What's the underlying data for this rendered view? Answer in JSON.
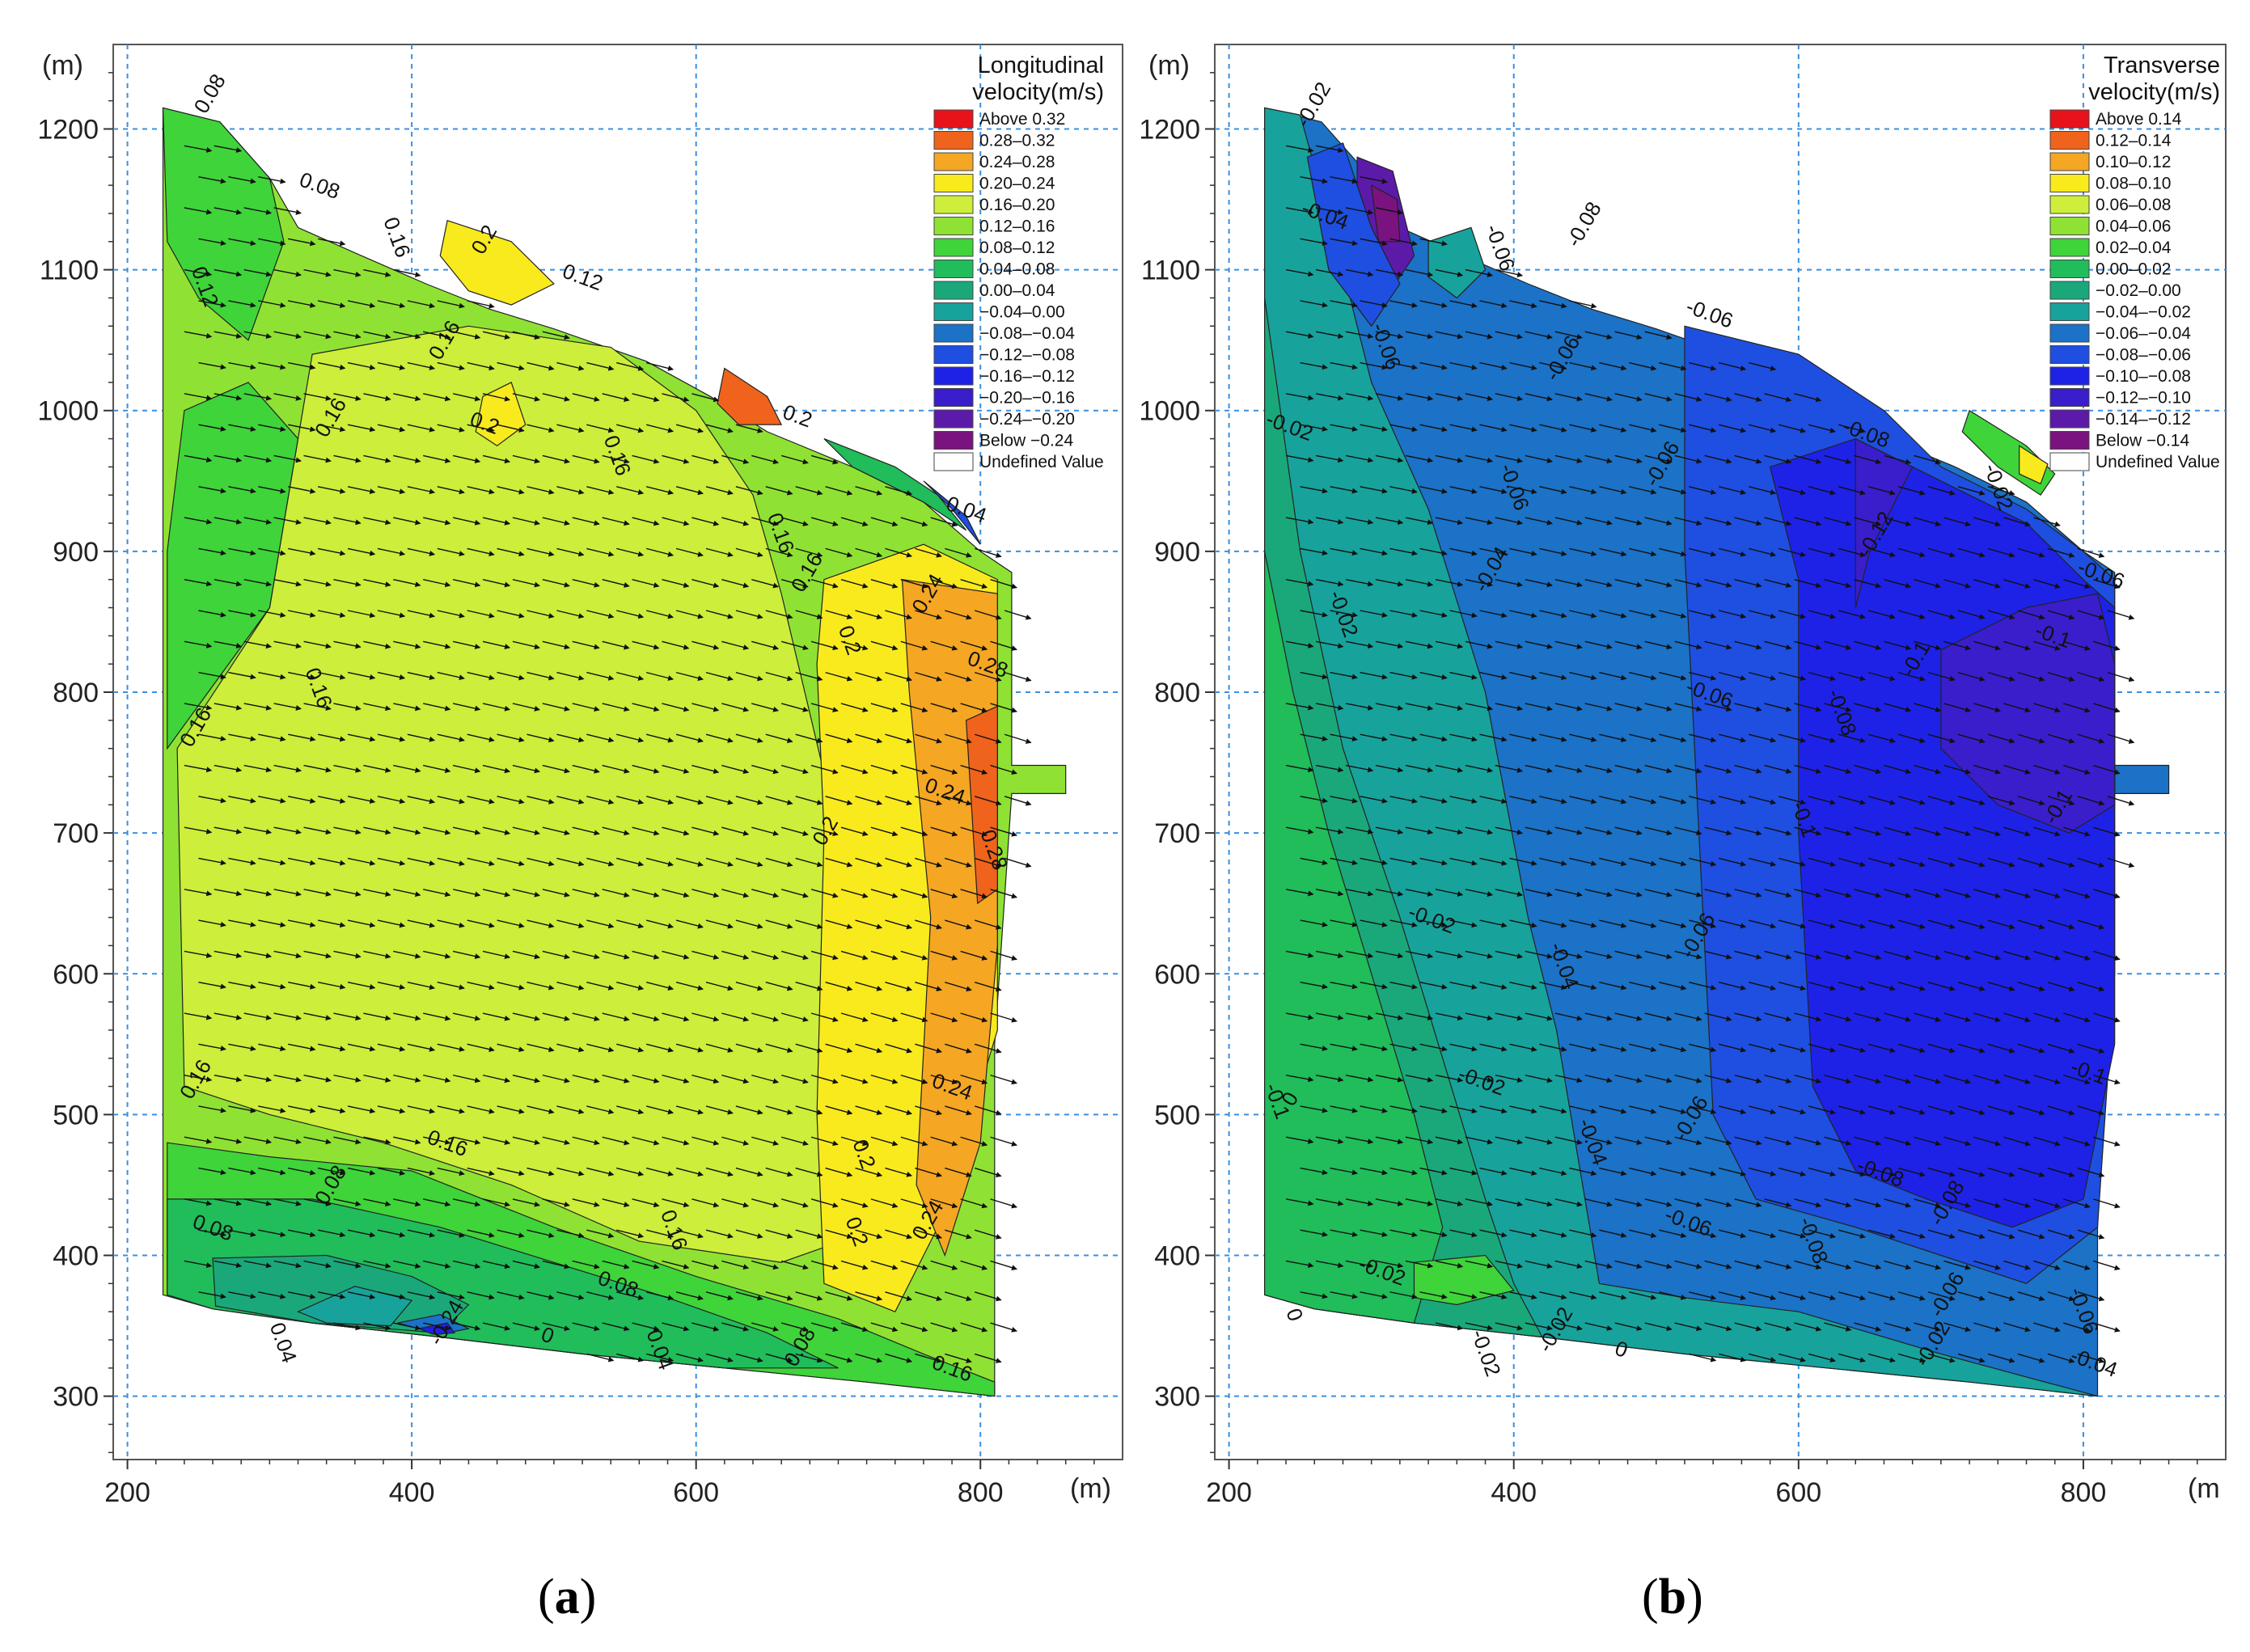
{
  "chart_data": [
    {
      "type": "heatmap",
      "panel_label": "a",
      "legend_title_lines": [
        "Longitudinal",
        "velocity(m/s)"
      ],
      "x_unit": "(m)",
      "y_unit": "(m)",
      "xlim": [
        190,
        900
      ],
      "ylim": [
        255,
        1260
      ],
      "x_ticks": [
        200,
        400,
        600,
        800
      ],
      "y_ticks": [
        300,
        400,
        500,
        600,
        700,
        800,
        900,
        1000,
        1100,
        1200
      ],
      "grid": true,
      "legend_position": "top-right",
      "legend": [
        {
          "label": "Above 0.32",
          "color": "#e8121a"
        },
        {
          "label": "0.28–0.32",
          "color": "#f0631c"
        },
        {
          "label": "0.24–0.28",
          "color": "#f5a623"
        },
        {
          "label": "0.20–0.24",
          "color": "#f9ea1e"
        },
        {
          "label": "0.16–0.20",
          "color": "#cdee3a"
        },
        {
          "label": "0.12–0.16",
          "color": "#8fe233"
        },
        {
          "label": "0.08–0.12",
          "color": "#3fd43a"
        },
        {
          "label": "0.04–0.08",
          "color": "#20bd5a"
        },
        {
          "label": "0.00–0.04",
          "color": "#1aa87a"
        },
        {
          "label": "−0.04–0.00",
          "color": "#17a39b"
        },
        {
          "label": "−0.08–−0.04",
          "color": "#1b72c7"
        },
        {
          "label": "−0.12–−0.08",
          "color": "#1e4fe0"
        },
        {
          "label": "−0.16–−0.12",
          "color": "#1e22e6"
        },
        {
          "label": "−0.20–−0.16",
          "color": "#3a1ecc"
        },
        {
          "label": "−0.24–−0.20",
          "color": "#5c1aa8"
        },
        {
          "label": "Below −0.24",
          "color": "#7a137f"
        },
        {
          "label": "Undefined Value",
          "color": "#ffffff"
        }
      ],
      "contour_labels": [
        {
          "x": 255,
          "y": 1210,
          "text": "0.08"
        },
        {
          "x": 320,
          "y": 1160,
          "text": "0.08"
        },
        {
          "x": 380,
          "y": 1135,
          "text": "0.16"
        },
        {
          "x": 450,
          "y": 1110,
          "text": "0.2"
        },
        {
          "x": 505,
          "y": 1095,
          "text": "0.12"
        },
        {
          "x": 245,
          "y": 1100,
          "text": "0.12"
        },
        {
          "x": 420,
          "y": 1035,
          "text": "0.16"
        },
        {
          "x": 440,
          "y": 990,
          "text": "0.2"
        },
        {
          "x": 535,
          "y": 980,
          "text": "0.16"
        },
        {
          "x": 340,
          "y": 980,
          "text": "0.16"
        },
        {
          "x": 660,
          "y": 995,
          "text": "0.2"
        },
        {
          "x": 650,
          "y": 925,
          "text": "0.16"
        },
        {
          "x": 675,
          "y": 870,
          "text": "0.16"
        },
        {
          "x": 775,
          "y": 930,
          "text": "0.04"
        },
        {
          "x": 700,
          "y": 845,
          "text": "0.2"
        },
        {
          "x": 760,
          "y": 855,
          "text": "0.24"
        },
        {
          "x": 790,
          "y": 820,
          "text": "0.28"
        },
        {
          "x": 325,
          "y": 815,
          "text": "0.16"
        },
        {
          "x": 245,
          "y": 760,
          "text": "0.16"
        },
        {
          "x": 760,
          "y": 730,
          "text": "0.24"
        },
        {
          "x": 800,
          "y": 700,
          "text": "0.28"
        },
        {
          "x": 690,
          "y": 690,
          "text": "0.2"
        },
        {
          "x": 765,
          "y": 520,
          "text": "0.24"
        },
        {
          "x": 710,
          "y": 480,
          "text": "0.2"
        },
        {
          "x": 245,
          "y": 510,
          "text": "0.16"
        },
        {
          "x": 410,
          "y": 480,
          "text": "0.16"
        },
        {
          "x": 575,
          "y": 430,
          "text": "0.16"
        },
        {
          "x": 340,
          "y": 435,
          "text": "0.08"
        },
        {
          "x": 245,
          "y": 420,
          "text": "0.08"
        },
        {
          "x": 705,
          "y": 425,
          "text": "0.2"
        },
        {
          "x": 760,
          "y": 410,
          "text": "0.24"
        },
        {
          "x": 530,
          "y": 380,
          "text": "0.08"
        },
        {
          "x": 300,
          "y": 350,
          "text": "0.04"
        },
        {
          "x": 420,
          "y": 335,
          "text": "-0.24"
        },
        {
          "x": 490,
          "y": 340,
          "text": "0"
        },
        {
          "x": 565,
          "y": 345,
          "text": "0.04"
        },
        {
          "x": 670,
          "y": 320,
          "text": "0.08"
        },
        {
          "x": 765,
          "y": 320,
          "text": "0.16"
        }
      ]
    },
    {
      "type": "heatmap",
      "panel_label": "b",
      "legend_title_lines": [
        "Transverse",
        "velocity(m/s)"
      ],
      "x_unit": "(m",
      "y_unit": "(m)",
      "xlim": [
        190,
        900
      ],
      "ylim": [
        255,
        1260
      ],
      "x_ticks": [
        200,
        400,
        600,
        800
      ],
      "y_ticks": [
        300,
        400,
        500,
        600,
        700,
        800,
        900,
        1000,
        1100,
        1200
      ],
      "grid": true,
      "legend_position": "top-right",
      "legend": [
        {
          "label": "Above 0.14",
          "color": "#e8121a"
        },
        {
          "label": "0.12–0.14",
          "color": "#f0631c"
        },
        {
          "label": "0.10–0.12",
          "color": "#f5a623"
        },
        {
          "label": "0.08–0.10",
          "color": "#f9ea1e"
        },
        {
          "label": "0.06–0.08",
          "color": "#cdee3a"
        },
        {
          "label": "0.04–0.06",
          "color": "#8fe233"
        },
        {
          "label": "0.02–0.04",
          "color": "#3fd43a"
        },
        {
          "label": "0.00–0.02",
          "color": "#20bd5a"
        },
        {
          "label": "−0.02–0.00",
          "color": "#1aa87a"
        },
        {
          "label": "−0.04–−0.02",
          "color": "#17a39b"
        },
        {
          "label": "−0.06–−0.04",
          "color": "#1b72c7"
        },
        {
          "label": "−0.08–−0.06",
          "color": "#1e4fe0"
        },
        {
          "label": "−0.10–−0.08",
          "color": "#1e22e6"
        },
        {
          "label": "−0.12–−0.10",
          "color": "#3a1ecc"
        },
        {
          "label": "−0.14–−0.12",
          "color": "#5c1aa8"
        },
        {
          "label": "Below −0.14",
          "color": "#7a137f"
        },
        {
          "label": "Undefined Value",
          "color": "#ffffff"
        }
      ],
      "contour_labels": [
        {
          "x": 255,
          "y": 1200,
          "text": "-0.02"
        },
        {
          "x": 250,
          "y": 1140,
          "text": "-0.04"
        },
        {
          "x": 380,
          "y": 1130,
          "text": "-0.06"
        },
        {
          "x": 445,
          "y": 1115,
          "text": "-0.08"
        },
        {
          "x": 520,
          "y": 1070,
          "text": "-0.06"
        },
        {
          "x": 300,
          "y": 1060,
          "text": "-0.06"
        },
        {
          "x": 430,
          "y": 1020,
          "text": "-0.06"
        },
        {
          "x": 225,
          "y": 990,
          "text": "-0.02"
        },
        {
          "x": 390,
          "y": 960,
          "text": "-0.06"
        },
        {
          "x": 500,
          "y": 945,
          "text": "-0.06"
        },
        {
          "x": 630,
          "y": 985,
          "text": "-0.08"
        },
        {
          "x": 730,
          "y": 960,
          "text": "-0.02"
        },
        {
          "x": 650,
          "y": 895,
          "text": "-0.12"
        },
        {
          "x": 795,
          "y": 885,
          "text": "-0.06"
        },
        {
          "x": 270,
          "y": 870,
          "text": "-0.02"
        },
        {
          "x": 380,
          "y": 870,
          "text": "-0.04"
        },
        {
          "x": 520,
          "y": 800,
          "text": "-0.06"
        },
        {
          "x": 620,
          "y": 800,
          "text": "-0.08"
        },
        {
          "x": 680,
          "y": 810,
          "text": "-0.1"
        },
        {
          "x": 765,
          "y": 840,
          "text": "-0.1"
        },
        {
          "x": 595,
          "y": 720,
          "text": "-0.1"
        },
        {
          "x": 780,
          "y": 705,
          "text": "-0.1"
        },
        {
          "x": 325,
          "y": 640,
          "text": "-0.02"
        },
        {
          "x": 425,
          "y": 620,
          "text": "-0.04"
        },
        {
          "x": 525,
          "y": 610,
          "text": "-0.06"
        },
        {
          "x": 790,
          "y": 530,
          "text": "-0.1"
        },
        {
          "x": 225,
          "y": 520,
          "text": "-0.1"
        },
        {
          "x": 245,
          "y": 505,
          "text": "0"
        },
        {
          "x": 360,
          "y": 525,
          "text": "-0.02"
        },
        {
          "x": 445,
          "y": 495,
          "text": "-0.04"
        },
        {
          "x": 520,
          "y": 480,
          "text": "-0.06"
        },
        {
          "x": 640,
          "y": 460,
          "text": "-0.08"
        },
        {
          "x": 600,
          "y": 425,
          "text": "-0.08"
        },
        {
          "x": 700,
          "y": 420,
          "text": "-0.08"
        },
        {
          "x": 505,
          "y": 425,
          "text": "-0.06"
        },
        {
          "x": 790,
          "y": 375,
          "text": "-0.06"
        },
        {
          "x": 700,
          "y": 355,
          "text": "-0.06"
        },
        {
          "x": 290,
          "y": 390,
          "text": "-0.02"
        },
        {
          "x": 370,
          "y": 345,
          "text": "-0.02"
        },
        {
          "x": 425,
          "y": 330,
          "text": "-0.02"
        },
        {
          "x": 470,
          "y": 330,
          "text": "0"
        },
        {
          "x": 240,
          "y": 360,
          "text": "0"
        },
        {
          "x": 690,
          "y": 320,
          "text": "-0.02"
        },
        {
          "x": 790,
          "y": 325,
          "text": "-0.04"
        }
      ]
    }
  ]
}
